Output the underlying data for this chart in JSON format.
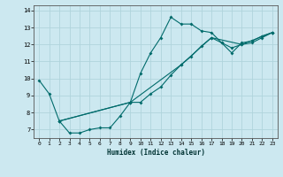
{
  "xlabel": "Humidex (Indice chaleur)",
  "bg_color": "#cce8f0",
  "line_color": "#006b6b",
  "grid_color": "#b0d4dc",
  "xlim": [
    -0.5,
    23.5
  ],
  "ylim": [
    6.5,
    14.3
  ],
  "xticks": [
    0,
    1,
    2,
    3,
    4,
    5,
    6,
    7,
    8,
    9,
    10,
    11,
    12,
    13,
    14,
    15,
    16,
    17,
    18,
    19,
    20,
    21,
    22,
    23
  ],
  "yticks": [
    7,
    8,
    9,
    10,
    11,
    12,
    13,
    14
  ],
  "curve1_x": [
    0,
    1,
    2,
    3,
    4,
    5,
    6,
    7,
    8,
    9,
    10,
    11,
    12,
    13,
    14,
    15,
    16,
    17,
    18,
    19,
    20,
    21,
    22,
    23
  ],
  "curve1_y": [
    9.9,
    9.1,
    7.5,
    6.8,
    6.8,
    7.0,
    7.1,
    7.1,
    7.8,
    8.6,
    10.3,
    11.5,
    12.4,
    13.6,
    13.2,
    13.2,
    12.8,
    12.7,
    12.1,
    11.5,
    12.1,
    12.2,
    12.5,
    12.7
  ],
  "curve2_x": [
    2,
    9,
    10,
    11,
    12,
    13,
    14,
    15,
    16,
    17,
    18,
    19,
    20,
    21,
    22,
    23
  ],
  "curve2_y": [
    7.5,
    8.6,
    8.6,
    9.1,
    9.5,
    10.2,
    10.8,
    11.3,
    11.9,
    12.4,
    12.1,
    11.8,
    12.0,
    12.1,
    12.4,
    12.7
  ],
  "curve3_x": [
    2,
    9,
    14,
    17,
    20,
    23
  ],
  "curve3_y": [
    7.5,
    8.6,
    10.8,
    12.4,
    12.0,
    12.7
  ]
}
